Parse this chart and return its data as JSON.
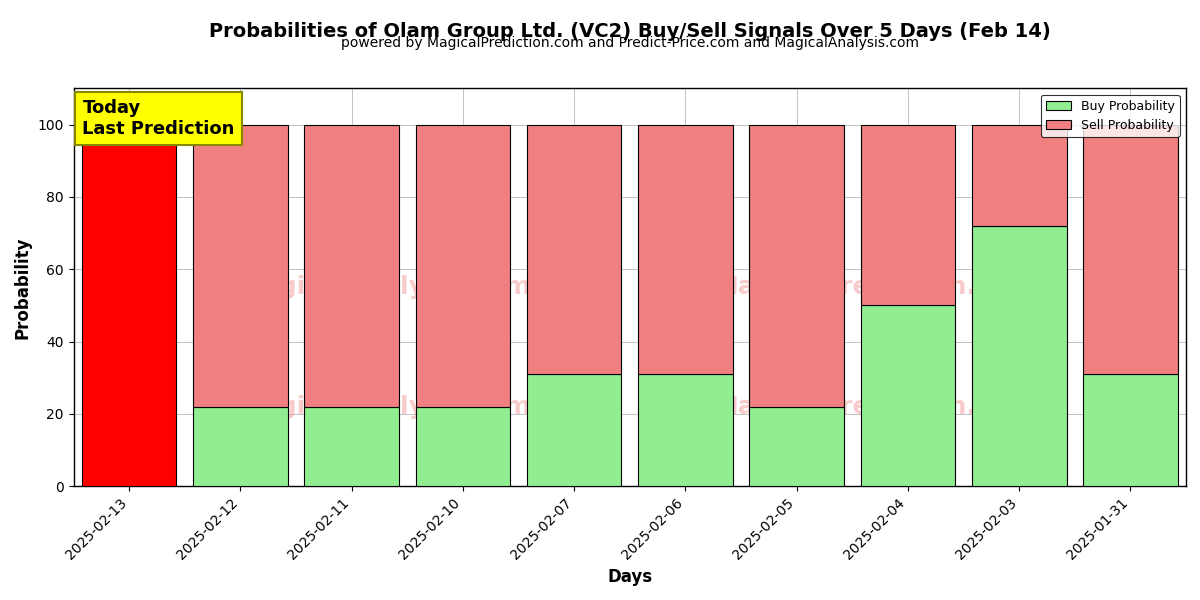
{
  "title": "Probabilities of Olam Group Ltd. (VC2) Buy/Sell Signals Over 5 Days (Feb 14)",
  "subtitle": "powered by MagicalPrediction.com and Predict-Price.com and MagicalAnalysis.com",
  "xlabel": "Days",
  "ylabel": "Probability",
  "categories": [
    "2025-02-13",
    "2025-02-12",
    "2025-02-11",
    "2025-02-10",
    "2025-02-07",
    "2025-02-06",
    "2025-02-05",
    "2025-02-04",
    "2025-02-03",
    "2025-01-31"
  ],
  "buy_values": [
    0,
    22,
    22,
    22,
    31,
    31,
    22,
    50,
    72,
    31
  ],
  "sell_values": [
    100,
    78,
    78,
    78,
    69,
    69,
    78,
    50,
    28,
    69
  ],
  "today_bar_index": 0,
  "buy_color_today": "#FF0000",
  "buy_color": "#90EE90",
  "sell_color": "#F08080",
  "bar_edge_color": "#000000",
  "bar_width": 0.85,
  "ylim": [
    0,
    110
  ],
  "yticks": [
    0,
    20,
    40,
    60,
    80,
    100
  ],
  "dashed_line_y": 110,
  "watermark1": "MagicalAnalysis.com",
  "watermark2": "MagicalPrediction.com",
  "watermark_full": "MagicalAnalysis.com          MagicalPrediction.com",
  "annotation_text": "Today\nLast Prediction",
  "legend_buy_label": "Buy Probability",
  "legend_sell_label": "Sell Probability",
  "title_fontsize": 14,
  "subtitle_fontsize": 10,
  "axis_label_fontsize": 12,
  "tick_fontsize": 10,
  "background_color": "#ffffff",
  "grid_color": "#888888"
}
